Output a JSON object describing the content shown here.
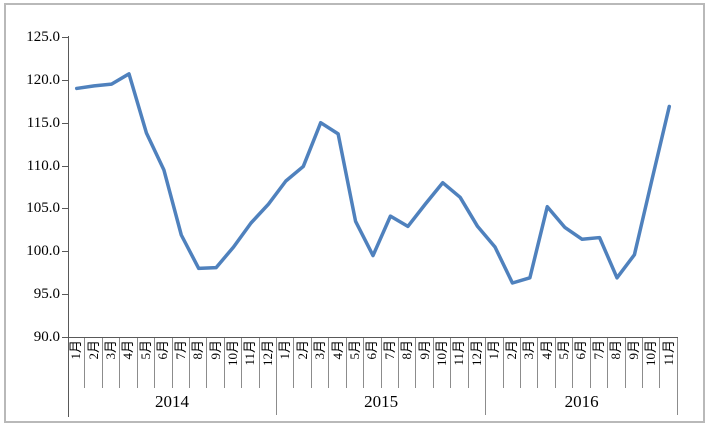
{
  "chart_data": {
    "type": "line",
    "title": "",
    "xlabel": "",
    "ylabel": "",
    "ylim": [
      90,
      125
    ],
    "y_tick_step": 5,
    "grid": false,
    "legend": false,
    "line_color": "#4F81BD",
    "y_ticks": [
      "125.0",
      "120.0",
      "115.0",
      "110.0",
      "105.0",
      "100.0",
      "95.0",
      "90.0"
    ],
    "categories": [
      "1月",
      "2月",
      "3月",
      "4月",
      "5月",
      "6月",
      "7月",
      "8月",
      "9月",
      "10月",
      "11月",
      "12月",
      "1月",
      "2月",
      "3月",
      "4月",
      "5月",
      "6月",
      "7月",
      "8月",
      "9月",
      "10月",
      "11月",
      "12月",
      "1月",
      "2月",
      "3月",
      "4月",
      "5月",
      "6月",
      "7月",
      "8月",
      "9月",
      "10月",
      "11月"
    ],
    "values": [
      119.0,
      119.3,
      119.5,
      120.7,
      113.8,
      109.5,
      101.9,
      98.0,
      98.1,
      100.5,
      103.3,
      105.5,
      108.2,
      109.9,
      115.0,
      113.7,
      103.5,
      99.5,
      104.1,
      102.9,
      105.5,
      108.0,
      106.3,
      102.9,
      100.5,
      96.3,
      96.9,
      105.2,
      102.8,
      101.4,
      101.6,
      96.9,
      99.6,
      108.3,
      116.9
    ],
    "year_groups": [
      {
        "label": "2014",
        "months": 12
      },
      {
        "label": "2015",
        "months": 12
      },
      {
        "label": "2016",
        "months": 11
      }
    ]
  }
}
